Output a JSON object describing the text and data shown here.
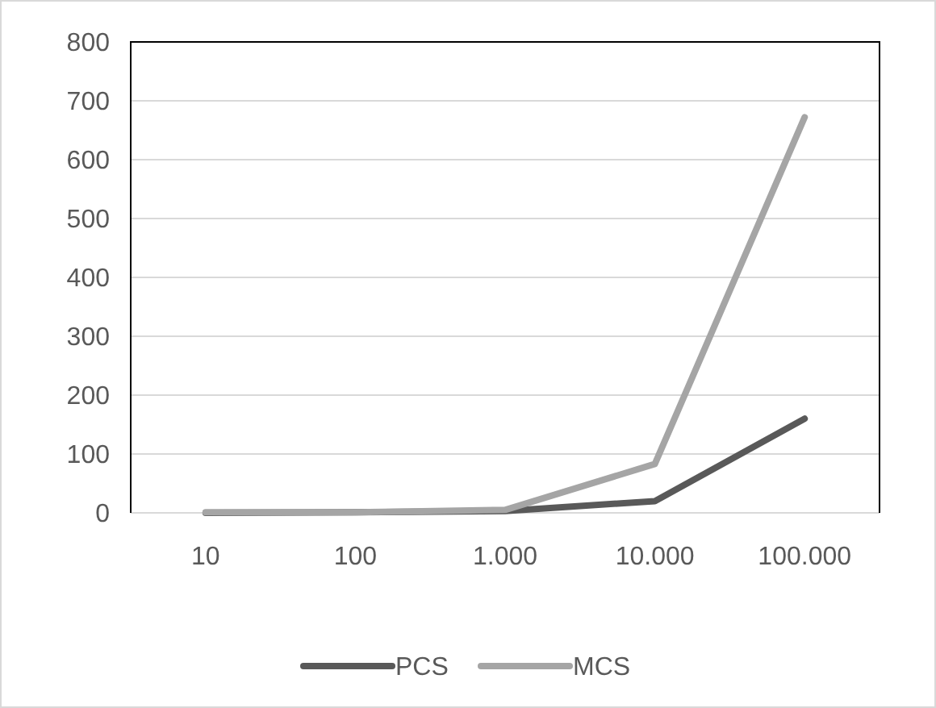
{
  "chart_data": {
    "type": "line",
    "categories": [
      "10",
      "100",
      "1.000",
      "10.000",
      "100.000"
    ],
    "series": [
      {
        "name": "PCS",
        "color": "#595959",
        "values": [
          0,
          1,
          3,
          20,
          160
        ]
      },
      {
        "name": "MCS",
        "color": "#a5a5a5",
        "values": [
          1,
          1,
          5,
          83,
          672
        ]
      }
    ],
    "ylim": [
      0,
      800
    ],
    "yticks": [
      0,
      100,
      200,
      300,
      400,
      500,
      600,
      700,
      800
    ],
    "grid": "y",
    "legend": "bottom",
    "marker": "none",
    "line_style": "solid"
  }
}
